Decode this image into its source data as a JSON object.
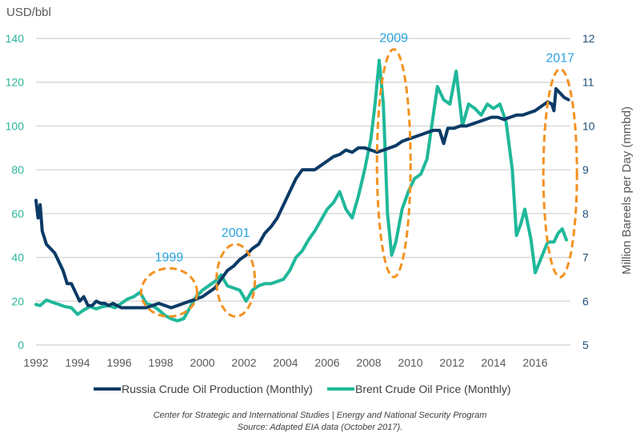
{
  "chart_data": {
    "type": "line",
    "title": "",
    "ylabel_left": "USD/bbl",
    "ylabel_right": "Million Bareels per Day (mmbd)",
    "xlabel": "",
    "xlim": [
      1992,
      2017.6
    ],
    "ylim_left": [
      0,
      140
    ],
    "ylim_right": [
      5,
      12
    ],
    "grid": true,
    "legend_position": "bottom",
    "x_ticks": [
      "1992",
      "1994",
      "1996",
      "1998",
      "2000",
      "2002",
      "2004",
      "2006",
      "2008",
      "2010",
      "2012",
      "2014",
      "2016"
    ],
    "y_ticks_left": [
      "0",
      "20",
      "40",
      "60",
      "80",
      "100",
      "120",
      "140"
    ],
    "y_ticks_right": [
      "5",
      "6",
      "7",
      "8",
      "9",
      "10",
      "11",
      "12"
    ],
    "colors": {
      "production": "#0b3a66",
      "price": "#1fb89a",
      "annotation_ellipse": "#f39221",
      "annotation_text": "#29a3e0",
      "grid": "#d9d9d9"
    },
    "series": [
      {
        "name": "Russia Crude Oil Production (Monthly)",
        "axis": "right",
        "x": [
          1992.0,
          1992.1,
          1992.2,
          1992.3,
          1992.5,
          1992.7,
          1992.9,
          1993.1,
          1993.3,
          1993.5,
          1993.7,
          1993.9,
          1994.1,
          1994.3,
          1994.5,
          1994.7,
          1994.9,
          1995.1,
          1995.3,
          1995.5,
          1995.7,
          1995.9,
          1996.1,
          1996.4,
          1996.7,
          1997.0,
          1997.3,
          1997.6,
          1997.9,
          1998.2,
          1998.5,
          1998.8,
          1999.1,
          1999.4,
          1999.7,
          2000.0,
          2000.3,
          2000.6,
          2000.9,
          2001.2,
          2001.5,
          2001.8,
          2002.1,
          2002.4,
          2002.7,
          2003.0,
          2003.3,
          2003.6,
          2003.9,
          2004.2,
          2004.5,
          2004.8,
          2005.1,
          2005.4,
          2005.7,
          2006.0,
          2006.3,
          2006.6,
          2006.9,
          2007.2,
          2007.5,
          2007.8,
          2008.1,
          2008.4,
          2008.7,
          2009.0,
          2009.3,
          2009.6,
          2009.9,
          2010.2,
          2010.5,
          2010.8,
          2011.1,
          2011.4,
          2011.6,
          2011.8,
          2012.1,
          2012.4,
          2012.7,
          2013.0,
          2013.3,
          2013.6,
          2013.9,
          2014.2,
          2014.5,
          2014.8,
          2015.1,
          2015.4,
          2015.7,
          2016.0,
          2016.3,
          2016.6,
          2016.8,
          2016.9,
          2017.0,
          2017.2,
          2017.4,
          2017.6
        ],
        "values": [
          8.3,
          7.9,
          8.2,
          7.6,
          7.3,
          7.2,
          7.1,
          6.9,
          6.7,
          6.4,
          6.4,
          6.2,
          6.0,
          6.1,
          5.9,
          5.9,
          6.0,
          5.95,
          5.95,
          5.9,
          5.95,
          5.9,
          5.85,
          5.85,
          5.85,
          5.85,
          5.85,
          5.9,
          5.95,
          5.9,
          5.85,
          5.9,
          5.95,
          6.0,
          6.05,
          6.1,
          6.2,
          6.3,
          6.5,
          6.7,
          6.8,
          6.95,
          7.05,
          7.2,
          7.3,
          7.55,
          7.7,
          7.9,
          8.2,
          8.5,
          8.8,
          9.0,
          9.0,
          9.0,
          9.1,
          9.2,
          9.3,
          9.35,
          9.45,
          9.4,
          9.5,
          9.5,
          9.45,
          9.4,
          9.45,
          9.5,
          9.55,
          9.65,
          9.7,
          9.75,
          9.8,
          9.85,
          9.9,
          9.9,
          9.6,
          9.95,
          9.95,
          10.0,
          10.0,
          10.05,
          10.1,
          10.15,
          10.2,
          10.2,
          10.15,
          10.2,
          10.25,
          10.25,
          10.3,
          10.35,
          10.45,
          10.55,
          10.5,
          10.35,
          10.85,
          10.75,
          10.65,
          10.6
        ]
      },
      {
        "name": "Brent Crude Oil Price (Monthly)",
        "axis": "left",
        "x": [
          1992.0,
          1992.2,
          1992.5,
          1992.8,
          1993.1,
          1993.4,
          1993.7,
          1994.0,
          1994.3,
          1994.6,
          1994.9,
          1995.2,
          1995.5,
          1995.8,
          1996.1,
          1996.4,
          1996.7,
          1997.0,
          1997.3,
          1997.6,
          1997.9,
          1998.2,
          1998.5,
          1998.8,
          1999.1,
          1999.4,
          1999.7,
          2000.0,
          2000.3,
          2000.6,
          2000.9,
          2001.2,
          2001.5,
          2001.8,
          2002.1,
          2002.4,
          2002.7,
          2003.0,
          2003.3,
          2003.6,
          2003.9,
          2004.2,
          2004.5,
          2004.8,
          2005.1,
          2005.4,
          2005.7,
          2006.0,
          2006.3,
          2006.6,
          2006.9,
          2007.2,
          2007.5,
          2007.8,
          2008.1,
          2008.3,
          2008.5,
          2008.7,
          2008.9,
          2009.1,
          2009.3,
          2009.6,
          2009.9,
          2010.2,
          2010.5,
          2010.8,
          2011.1,
          2011.3,
          2011.6,
          2011.9,
          2012.2,
          2012.5,
          2012.8,
          2013.1,
          2013.4,
          2013.7,
          2014.0,
          2014.3,
          2014.6,
          2014.9,
          2015.1,
          2015.3,
          2015.5,
          2015.8,
          2016.0,
          2016.3,
          2016.6,
          2016.9,
          2017.1,
          2017.3,
          2017.5
        ],
        "values": [
          18.5,
          18,
          20.5,
          19.5,
          18.5,
          17.5,
          17,
          14,
          16,
          17.5,
          16.5,
          17.5,
          18,
          17,
          19,
          21,
          22,
          24,
          19,
          18,
          16,
          13.5,
          12,
          11,
          12,
          17,
          22,
          25,
          27,
          29,
          32,
          27,
          26,
          25,
          20,
          25,
          27,
          28,
          28,
          29,
          30,
          34,
          40,
          43,
          48,
          52,
          57,
          62,
          65,
          70,
          62,
          58,
          68,
          80,
          94,
          110,
          130,
          110,
          60,
          41,
          47,
          62,
          70,
          76,
          78,
          85,
          105,
          118,
          112,
          110,
          125,
          100,
          110,
          108,
          105,
          110,
          108,
          110,
          102,
          80,
          50,
          55,
          62,
          48,
          33,
          40,
          47,
          47,
          51,
          53,
          48
        ]
      }
    ],
    "annotations": [
      {
        "label": "1999",
        "x_center": 1998.4,
        "y_range_left": [
          13,
          35
        ]
      },
      {
        "label": "2001",
        "x_center": 2001.6,
        "y_range_left": [
          13,
          46
        ]
      },
      {
        "label": "2009",
        "x_center": 2009.2,
        "y_range_left": [
          31,
          135
        ]
      },
      {
        "label": "2017",
        "x_center": 2017.2,
        "y_range_left": [
          31,
          126
        ]
      }
    ]
  },
  "footer": {
    "line1": "Center for Strategic and International Studies | Energy and National Security Program",
    "line2": "Source: Adapted EIA data (October 2017)."
  }
}
